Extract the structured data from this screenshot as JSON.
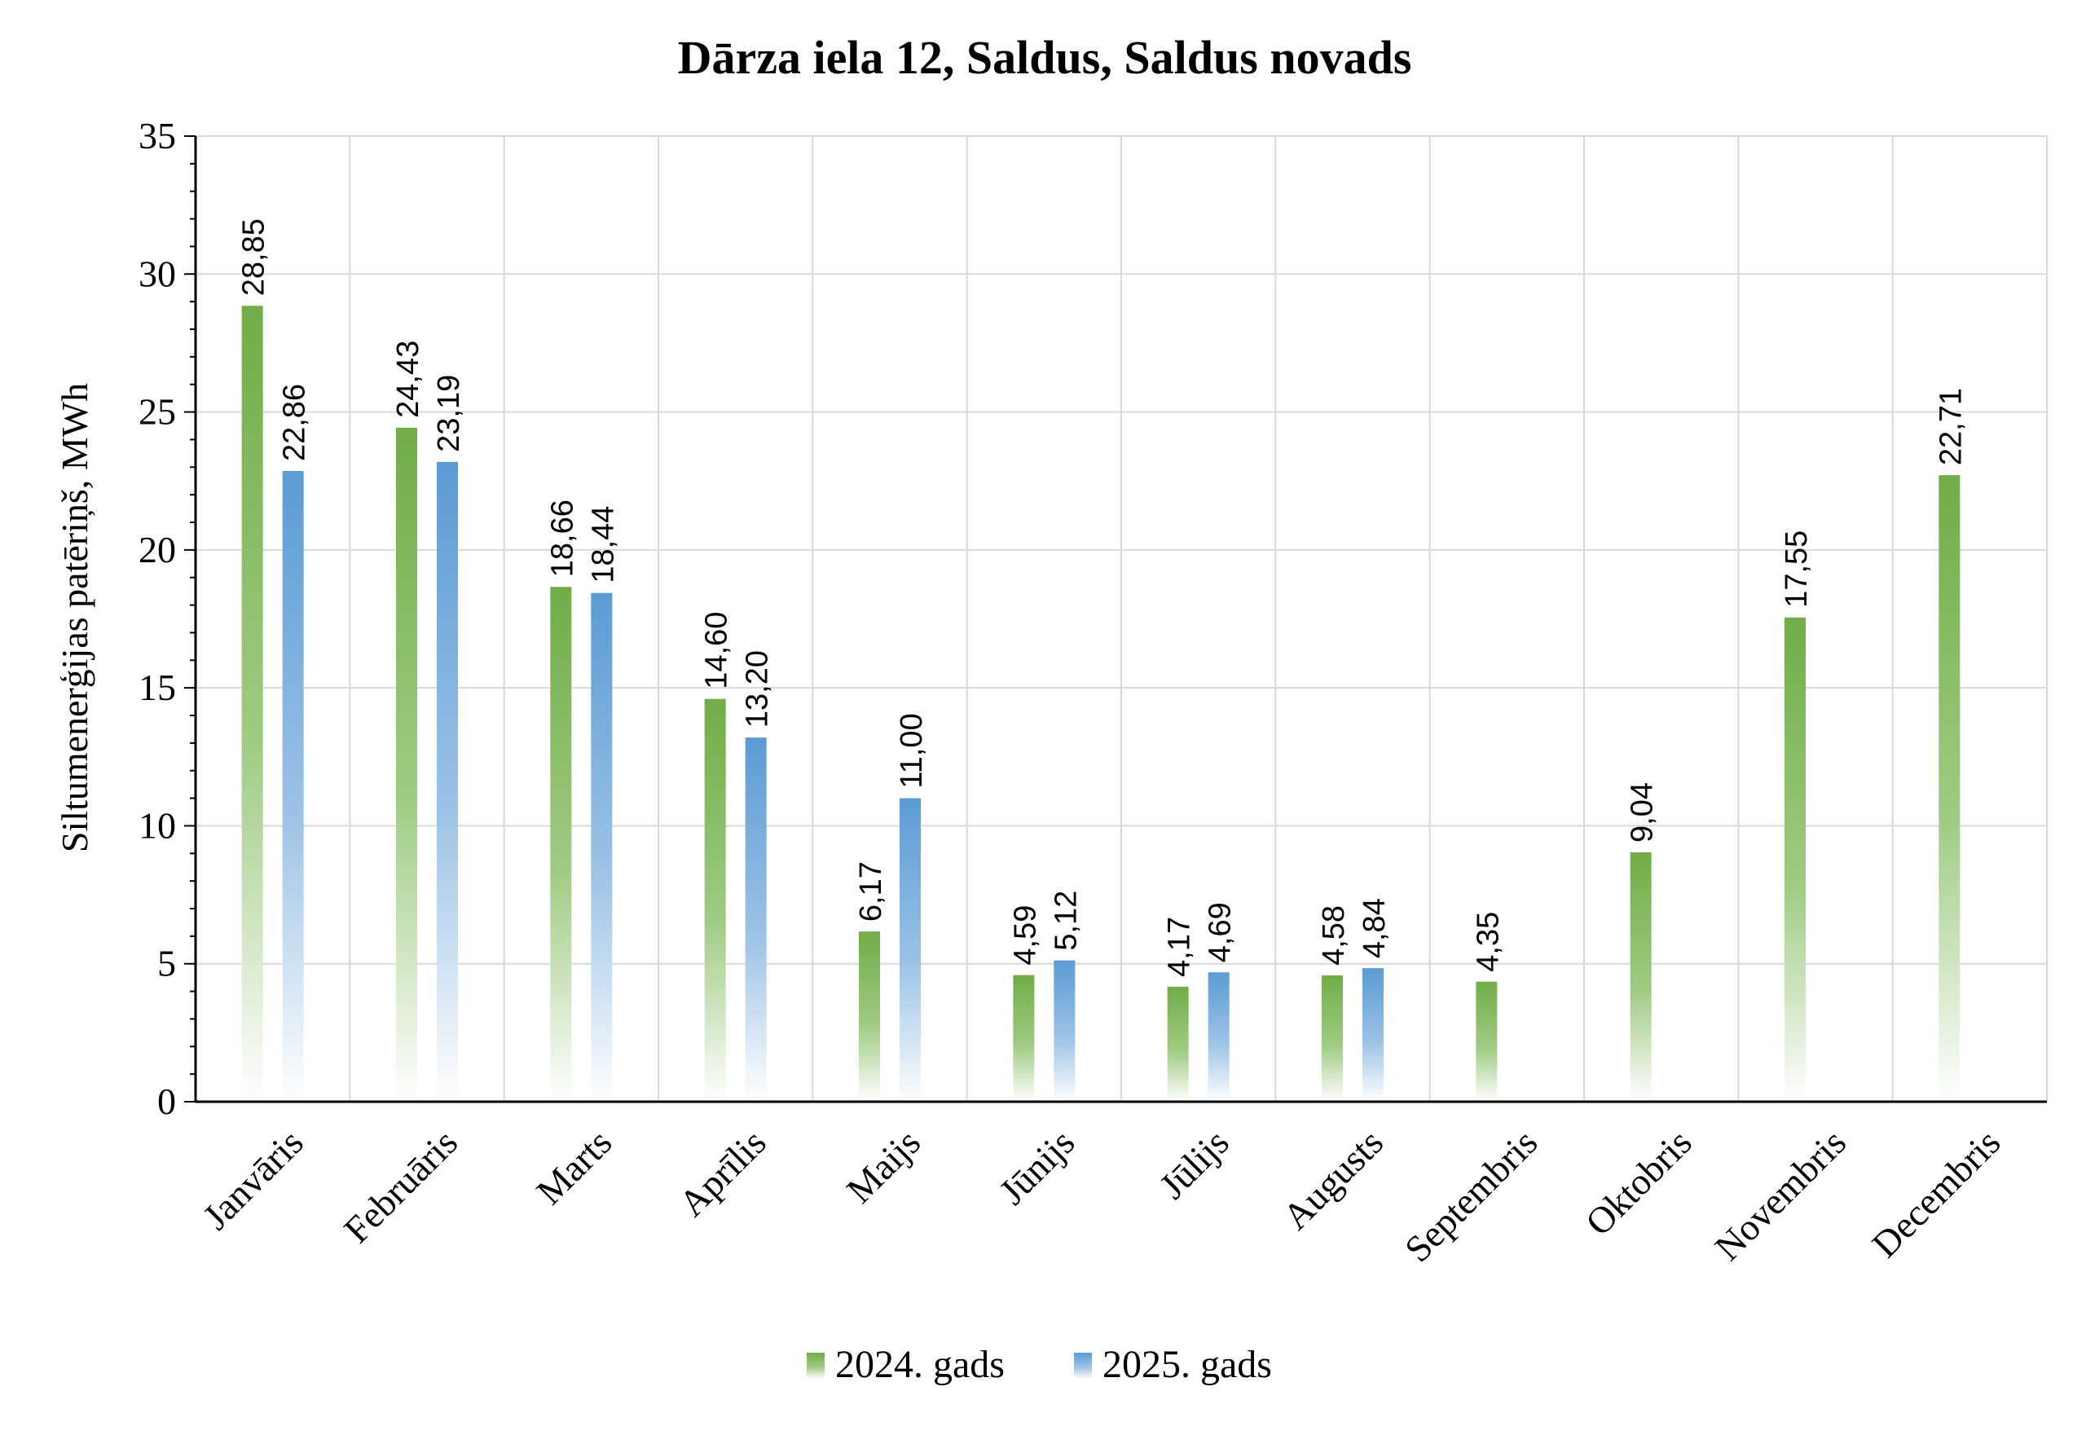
{
  "chart_data": {
    "type": "bar",
    "title": "Dārza iela 12, Saldus, Saldus novads",
    "xlabel": "",
    "ylabel": "Siltumenerģijas patēriņš, MWh",
    "ylim": [
      0,
      35
    ],
    "yticks": [
      "0",
      "5",
      "10",
      "15",
      "20",
      "25",
      "30",
      "35"
    ],
    "grid": true,
    "legend_position": "bottom",
    "categories": [
      "Janvāris",
      "Februāris",
      "Marts",
      "Aprīlis",
      "Maijs",
      "Jūnijs",
      "Jūlijs",
      "Augusts",
      "Septembris",
      "Oktobris",
      "Novembris",
      "Decembris"
    ],
    "series": [
      {
        "name": "2024. gads",
        "color": "#70ad47",
        "values": [
          28.85,
          24.43,
          18.66,
          14.6,
          6.17,
          4.59,
          4.17,
          4.58,
          4.35,
          9.04,
          17.55,
          22.71
        ],
        "labels": [
          "28,85",
          "24,43",
          "18,66",
          "14,60",
          "6,17",
          "4,59",
          "4,17",
          "4,58",
          "4,35",
          "9,04",
          "17,55",
          "22,71"
        ]
      },
      {
        "name": "2025. gads",
        "color": "#5b9bd5",
        "values": [
          22.86,
          23.19,
          18.44,
          13.2,
          11.0,
          5.12,
          4.69,
          4.84,
          null,
          null,
          null,
          null
        ],
        "labels": [
          "22,86",
          "23,19",
          "18,44",
          "13,20",
          "11,00",
          "5,12",
          "4,69",
          "4,84",
          "",
          "",
          "",
          ""
        ]
      }
    ]
  }
}
